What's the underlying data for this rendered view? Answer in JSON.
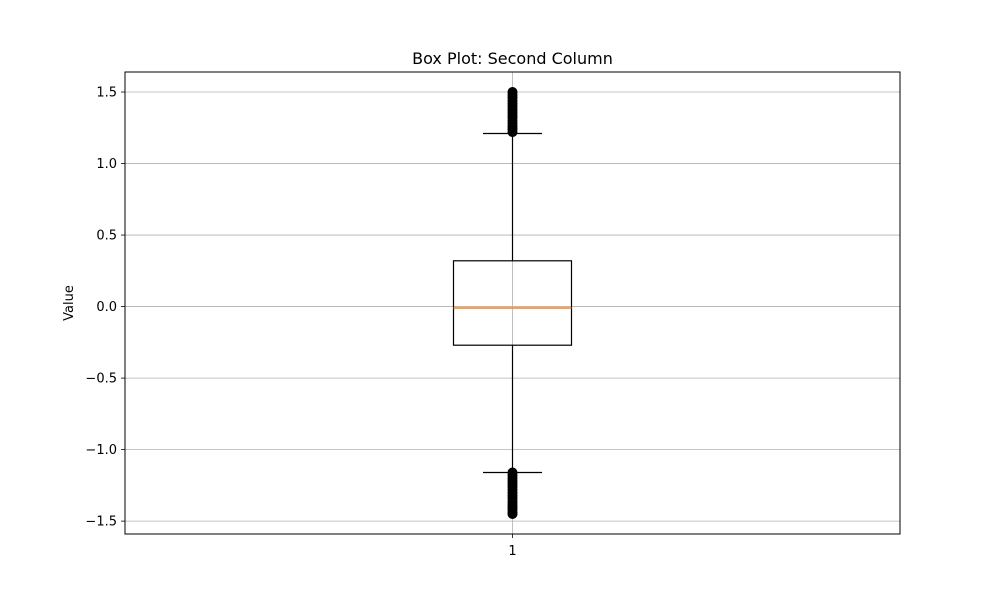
{
  "chart_data": {
    "type": "box",
    "title": "Box Plot: Second Column",
    "xlabel": "",
    "ylabel": "Value",
    "ylim": [
      -1.59,
      1.64
    ],
    "yticks": [
      1.5,
      1.0,
      0.5,
      0.0,
      -0.5,
      -1.0,
      -1.5
    ],
    "ytick_labels": [
      "1.5",
      "1.0",
      "0.5",
      "0.0",
      "−0.5",
      "−1.0",
      "−1.5"
    ],
    "categories": [
      "1"
    ],
    "grid": true,
    "colors": {
      "box": "#000000",
      "median": "#ff7f0e",
      "grid": "#b0b0b0",
      "outlier": "#000000"
    },
    "boxes": [
      {
        "category": "1",
        "q1": -0.27,
        "median": -0.01,
        "q3": 0.32,
        "whisker_low": -1.16,
        "whisker_high": 1.21,
        "outliers_low": [
          -1.16,
          -1.18,
          -1.2,
          -1.22,
          -1.24,
          -1.26,
          -1.28,
          -1.3,
          -1.32,
          -1.34,
          -1.36,
          -1.38,
          -1.4,
          -1.42,
          -1.44,
          -1.45
        ],
        "outliers_high": [
          1.22,
          1.24,
          1.26,
          1.28,
          1.3,
          1.32,
          1.34,
          1.36,
          1.38,
          1.4,
          1.42,
          1.44,
          1.46,
          1.48,
          1.5
        ]
      }
    ]
  }
}
